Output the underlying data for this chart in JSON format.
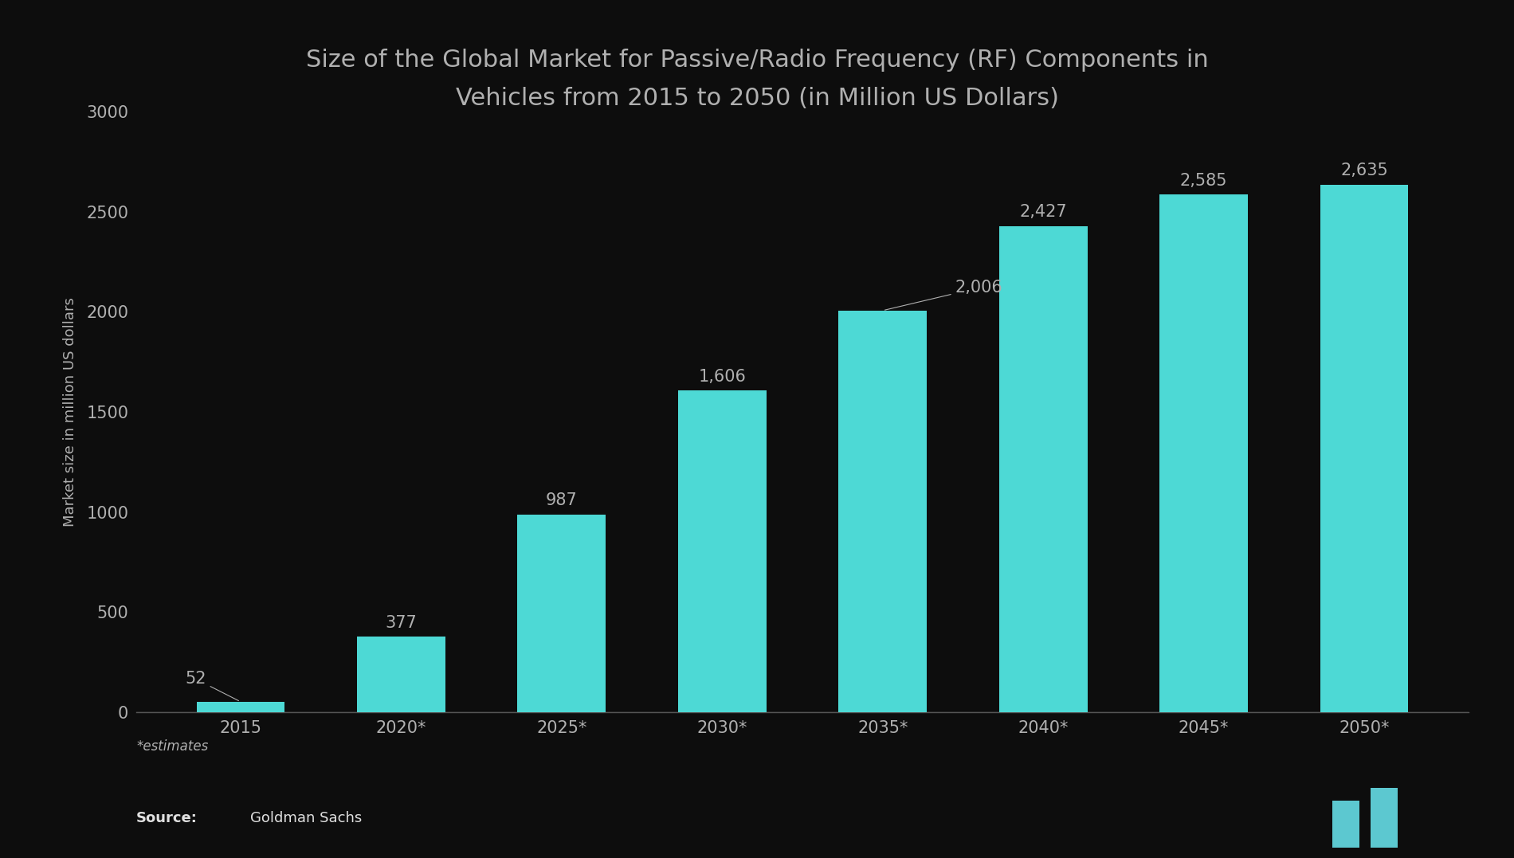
{
  "title_line1": "Size of the Global Market for Passive/Radio Frequency (RF) Components in",
  "title_line2": "Vehicles from 2015 to 2050 (in Million US Dollars)",
  "categories": [
    "2015",
    "2020*",
    "2025*",
    "2030*",
    "2035*",
    "2040*",
    "2045*",
    "2050*"
  ],
  "values": [
    52,
    377,
    987,
    1606,
    2006,
    2427,
    2585,
    2635
  ],
  "bar_color": "#4DD9D5",
  "background_color": "#0d0d0d",
  "text_color": "#b0b0b0",
  "ylabel": "Market size in million US dollars",
  "ylim": [
    0,
    3000
  ],
  "yticks": [
    0,
    500,
    1000,
    1500,
    2000,
    2500,
    3000
  ],
  "footnote": "*estimates",
  "footer_bar_color": "#1e7fa0",
  "title_fontsize": 22,
  "label_fontsize": 15,
  "tick_fontsize": 15,
  "ylabel_fontsize": 13
}
